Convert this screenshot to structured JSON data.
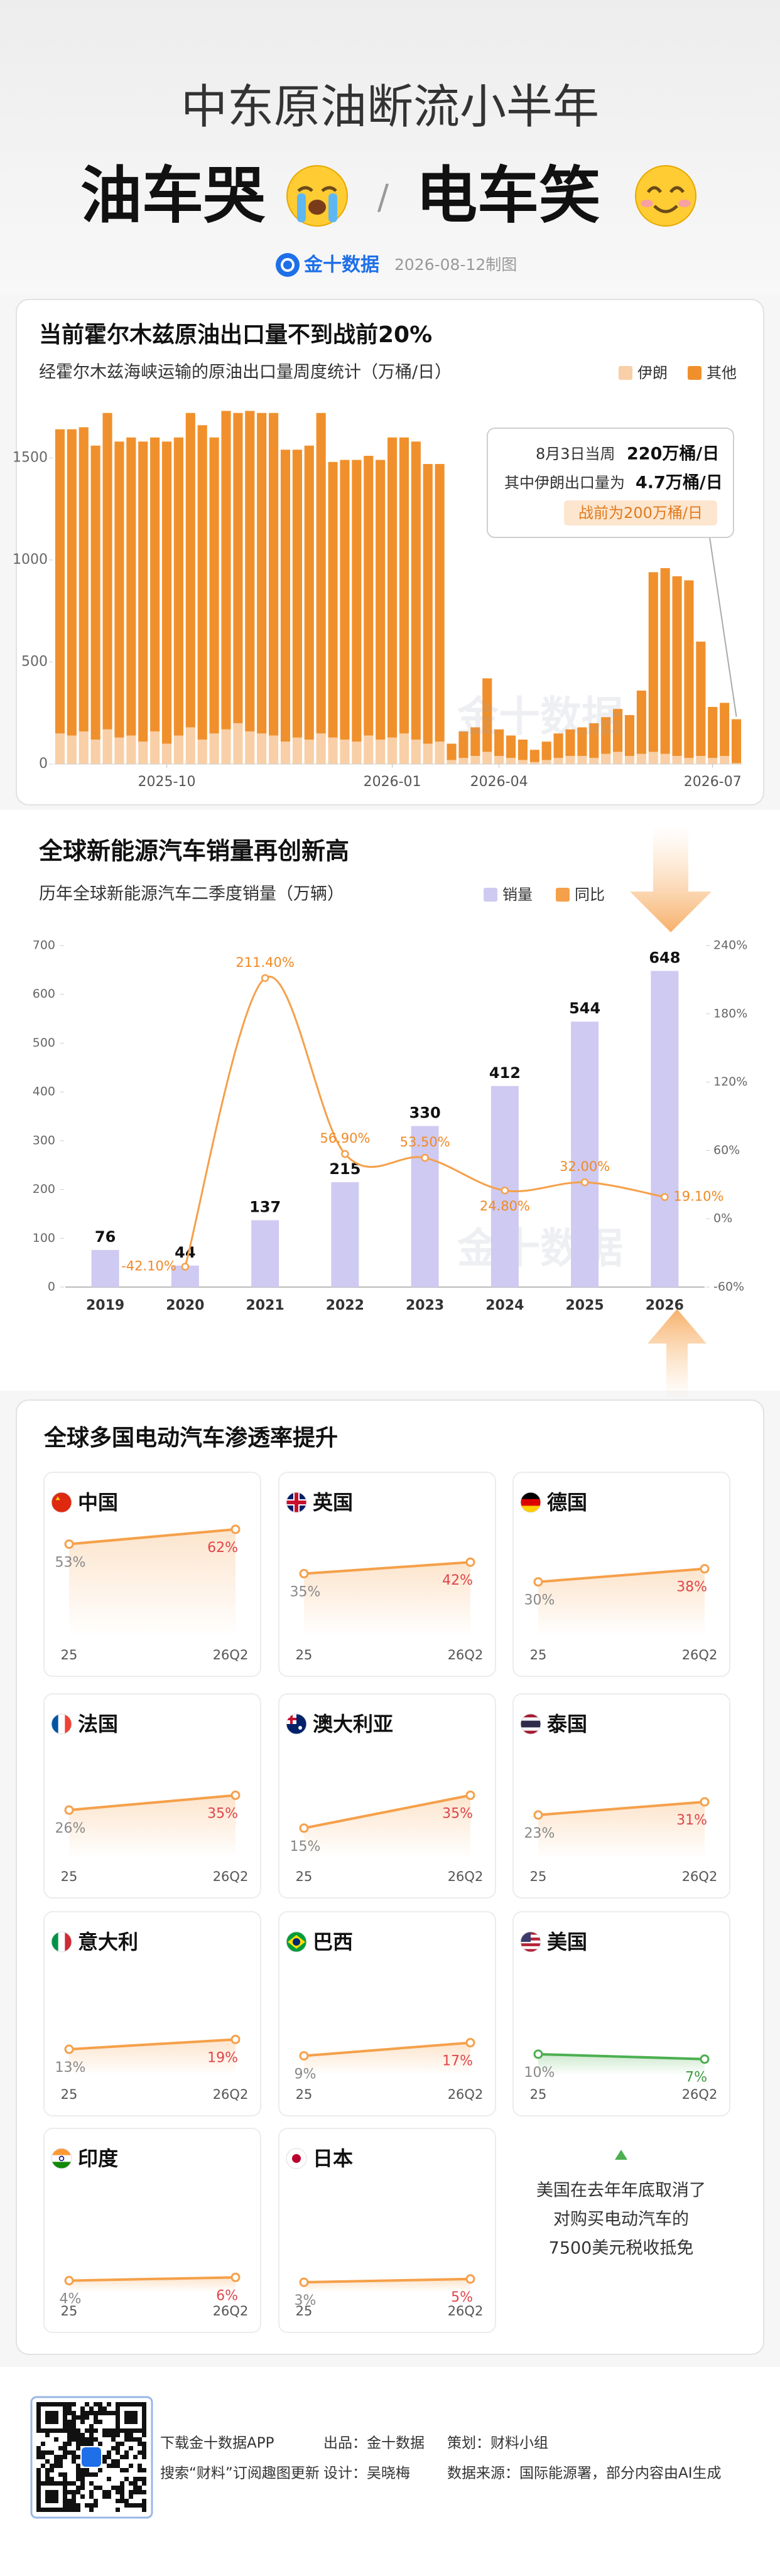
{
  "header": {
    "title": "中东原油断流小半年",
    "headline_left": "油车哭",
    "separator": "/",
    "headline_right": "电车笑",
    "brand": "金十数据",
    "date": "2026-08-12制图"
  },
  "chart_data": [
    {
      "type": "stacked-bar",
      "title": "当前霍尔木兹原油出口量不到战前20%",
      "subtitle": "经霍尔木兹海峡运输的原油出口量周度统计（万桶/日）",
      "categories": [
        null,
        null,
        null,
        null,
        null,
        null,
        null,
        null,
        null,
        "2025-10",
        null,
        null,
        null,
        null,
        null,
        null,
        null,
        null,
        null,
        null,
        null,
        null,
        null,
        null,
        null,
        null,
        null,
        null,
        "2026-01",
        null,
        null,
        null,
        null,
        null,
        null,
        null,
        null,
        "2026-04",
        null,
        null,
        null,
        null,
        null,
        null,
        null,
        null,
        null,
        null,
        null,
        null,
        null,
        null,
        null,
        null,
        null,
        "2026-07",
        null,
        null
      ],
      "series": [
        {
          "name": "伊朗",
          "color": "#f8cfa6",
          "values": [
            150,
            140,
            160,
            120,
            170,
            130,
            140,
            110,
            160,
            100,
            140,
            180,
            120,
            150,
            170,
            200,
            160,
            150,
            140,
            110,
            130,
            120,
            150,
            130,
            120,
            110,
            140,
            120,
            130,
            150,
            120,
            100,
            110,
            20,
            30,
            40,
            60,
            40,
            30,
            20,
            10,
            20,
            30,
            40,
            40,
            30,
            50,
            60,
            40,
            50,
            60,
            50,
            40,
            30,
            40,
            30,
            40,
            4.7
          ]
        },
        {
          "name": "其他",
          "color": "#f0902c",
          "values": [
            1490,
            1500,
            1490,
            1440,
            1550,
            1450,
            1460,
            1470,
            1440,
            1480,
            1460,
            1540,
            1540,
            1450,
            1560,
            1520,
            1570,
            1570,
            1580,
            1430,
            1410,
            1440,
            1570,
            1350,
            1370,
            1380,
            1370,
            1370,
            1470,
            1450,
            1460,
            1370,
            1360,
            80,
            130,
            140,
            360,
            130,
            110,
            100,
            60,
            90,
            120,
            130,
            140,
            170,
            180,
            210,
            200,
            310,
            880,
            910,
            880,
            870,
            560,
            250,
            260,
            215
          ]
        }
      ],
      "ylim": [
        0,
        1750
      ],
      "yticks": [
        0,
        500,
        1000,
        1500
      ],
      "annotation": {
        "week": "8月3日当周",
        "total": "220万桶/日",
        "iran_label": "其中伊朗出口量为",
        "iran_value": "4.7万桶/日",
        "prewar": "战前为200万桶/日"
      }
    },
    {
      "type": "bar-line",
      "title": "全球新能源汽车销量再创新高",
      "subtitle": "历年全球新能源汽车二季度销量（万辆）",
      "categories": [
        "2019",
        "2020",
        "2021",
        "2022",
        "2023",
        "2024",
        "2025",
        "2026"
      ],
      "series": [
        {
          "name": "销量",
          "color": "#cfcaf2",
          "values": [
            76,
            44,
            137,
            215,
            330,
            412,
            544,
            648
          ]
        },
        {
          "name": "同比",
          "color": "#f5a04a",
          "type": "line",
          "axis": "y2",
          "values": [
            null,
            -42.1,
            211.4,
            56.9,
            53.5,
            24.8,
            32.0,
            19.1
          ],
          "value_labels": [
            null,
            "-42.10%",
            "211.40%",
            "56.90%",
            "53.50%",
            "24.80%",
            "32.00%",
            "19.10%"
          ]
        }
      ],
      "ylim": [
        0,
        700
      ],
      "yticks": [
        0,
        100,
        200,
        300,
        400,
        500,
        600,
        700
      ],
      "y2lim": [
        -60,
        240
      ],
      "y2ticks": [
        {
          "value": -60,
          "label": "-60%"
        },
        {
          "value": 0,
          "label": "0%"
        },
        {
          "value": 60,
          "label": "60%"
        },
        {
          "value": 120,
          "label": "120%"
        },
        {
          "value": 180,
          "label": "180%"
        },
        {
          "value": 240,
          "label": "240%"
        }
      ]
    },
    {
      "type": "line",
      "title": "中国",
      "categories": [
        "25",
        "26Q2"
      ],
      "values": [
        53,
        62
      ],
      "value_labels": [
        "53%",
        "62%"
      ],
      "ylim": [
        0,
        70
      ],
      "color": "#f5a04a",
      "highlight_color": "#e0454a"
    },
    {
      "type": "line",
      "title": "英国",
      "categories": [
        "25",
        "26Q2"
      ],
      "values": [
        35,
        42
      ],
      "value_labels": [
        "35%",
        "42%"
      ],
      "ylim": [
        0,
        70
      ],
      "color": "#f5a04a",
      "highlight_color": "#e0454a"
    },
    {
      "type": "line",
      "title": "德国",
      "categories": [
        "25",
        "26Q2"
      ],
      "values": [
        30,
        38
      ],
      "value_labels": [
        "30%",
        "38%"
      ],
      "ylim": [
        0,
        70
      ],
      "color": "#f5a04a",
      "highlight_color": "#e0454a"
    },
    {
      "type": "line",
      "title": "法国",
      "categories": [
        "25",
        "26Q2"
      ],
      "values": [
        26,
        35
      ],
      "value_labels": [
        "26%",
        "35%"
      ],
      "ylim": [
        0,
        70
      ],
      "color": "#f5a04a",
      "highlight_color": "#e0454a"
    },
    {
      "type": "line",
      "title": "澳大利亚",
      "categories": [
        "25",
        "26Q2"
      ],
      "values": [
        15,
        35
      ],
      "value_labels": [
        "15%",
        "35%"
      ],
      "ylim": [
        0,
        70
      ],
      "color": "#f5a04a",
      "highlight_color": "#e0454a"
    },
    {
      "type": "line",
      "title": "泰国",
      "categories": [
        "25",
        "26Q2"
      ],
      "values": [
        23,
        31
      ],
      "value_labels": [
        "23%",
        "31%"
      ],
      "ylim": [
        0,
        70
      ],
      "color": "#f5a04a",
      "highlight_color": "#e0454a"
    },
    {
      "type": "line",
      "title": "意大利",
      "categories": [
        "25",
        "26Q2"
      ],
      "values": [
        13,
        19
      ],
      "value_labels": [
        "13%",
        "19%"
      ],
      "ylim": [
        0,
        70
      ],
      "color": "#f5a04a",
      "highlight_color": "#e0454a"
    },
    {
      "type": "line",
      "title": "巴西",
      "categories": [
        "25",
        "26Q2"
      ],
      "values": [
        9,
        17
      ],
      "value_labels": [
        "9%",
        "17%"
      ],
      "ylim": [
        0,
        70
      ],
      "color": "#f5a04a",
      "highlight_color": "#e0454a"
    },
    {
      "type": "line",
      "title": "美国",
      "categories": [
        "25",
        "26Q2"
      ],
      "values": [
        10,
        7
      ],
      "value_labels": [
        "10%",
        "7%"
      ],
      "ylim": [
        0,
        70
      ],
      "color": "#4caf50",
      "highlight_color": "#3c9a40"
    },
    {
      "type": "line",
      "title": "印度",
      "categories": [
        "25",
        "26Q2"
      ],
      "values": [
        4,
        6
      ],
      "value_labels": [
        "4%",
        "6%"
      ],
      "ylim": [
        0,
        70
      ],
      "color": "#f5a04a",
      "highlight_color": "#e0454a"
    },
    {
      "type": "line",
      "title": "日本",
      "categories": [
        "25",
        "26Q2"
      ],
      "values": [
        3,
        5
      ],
      "value_labels": [
        "3%",
        "5%"
      ],
      "ylim": [
        0,
        70
      ],
      "color": "#f5a04a",
      "highlight_color": "#e0454a"
    }
  ],
  "penetration": {
    "title": "全球多国电动汽车渗透率提升",
    "note": [
      "美国在去年年底取消了",
      "对购买电动汽车的",
      "7500美元税收抵免"
    ]
  },
  "footer": {
    "download": "下载金十数据APP",
    "subscribe": "搜索“财料”订阅趣图更新",
    "producer": "出品：金十数据",
    "designer": "设计：吴晓梅",
    "planner": "策划：财料小组",
    "source": "数据来源：国际能源署，部分内容由AI生成"
  }
}
